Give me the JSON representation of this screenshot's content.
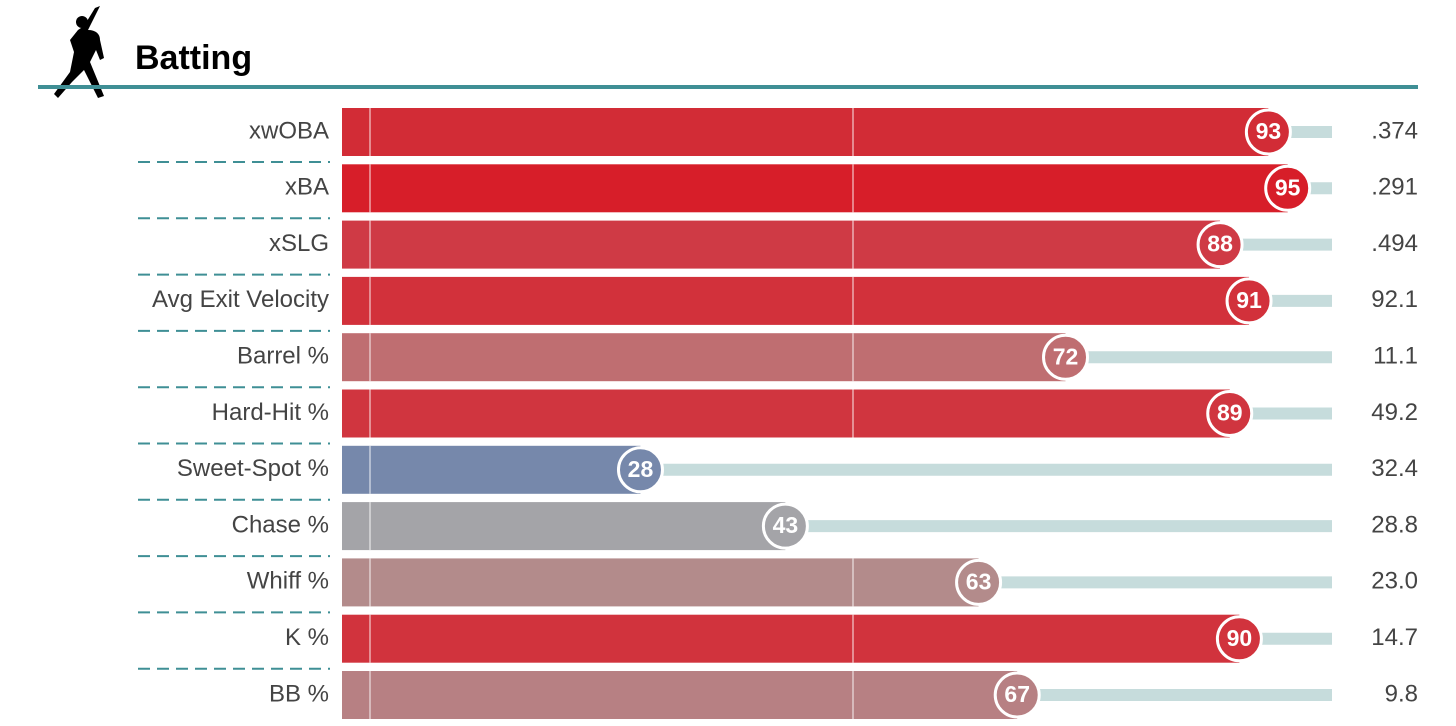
{
  "chart_data": {
    "type": "percentile-bar",
    "title": "Batting",
    "categories": [
      "xwOBA",
      "xBA",
      "xSLG",
      "Avg Exit Velocity",
      "Barrel %",
      "Hard-Hit %",
      "Sweet-Spot %",
      "Chase %",
      "Whiff %",
      "K %",
      "BB %"
    ],
    "values": [
      93,
      95,
      88,
      91,
      72,
      89,
      28,
      43,
      63,
      90,
      67
    ],
    "colors": [
      "#d22c36",
      "#d71e29",
      "#cf3a45",
      "#d2313b",
      "#bf6e71",
      "#d0353f",
      "#7688ab",
      "#a4a4a8",
      "#b38b8b",
      "#d1333d",
      "#b78083"
    ],
    "stat_labels": [
      ".374",
      ".291",
      ".494",
      "92.1",
      "11.1",
      "49.2",
      "32.4",
      "28.8",
      "23.0",
      "14.7",
      "9.8"
    ],
    "xlim": [
      0,
      100
    ],
    "gridlines": [
      0,
      50
    ]
  }
}
